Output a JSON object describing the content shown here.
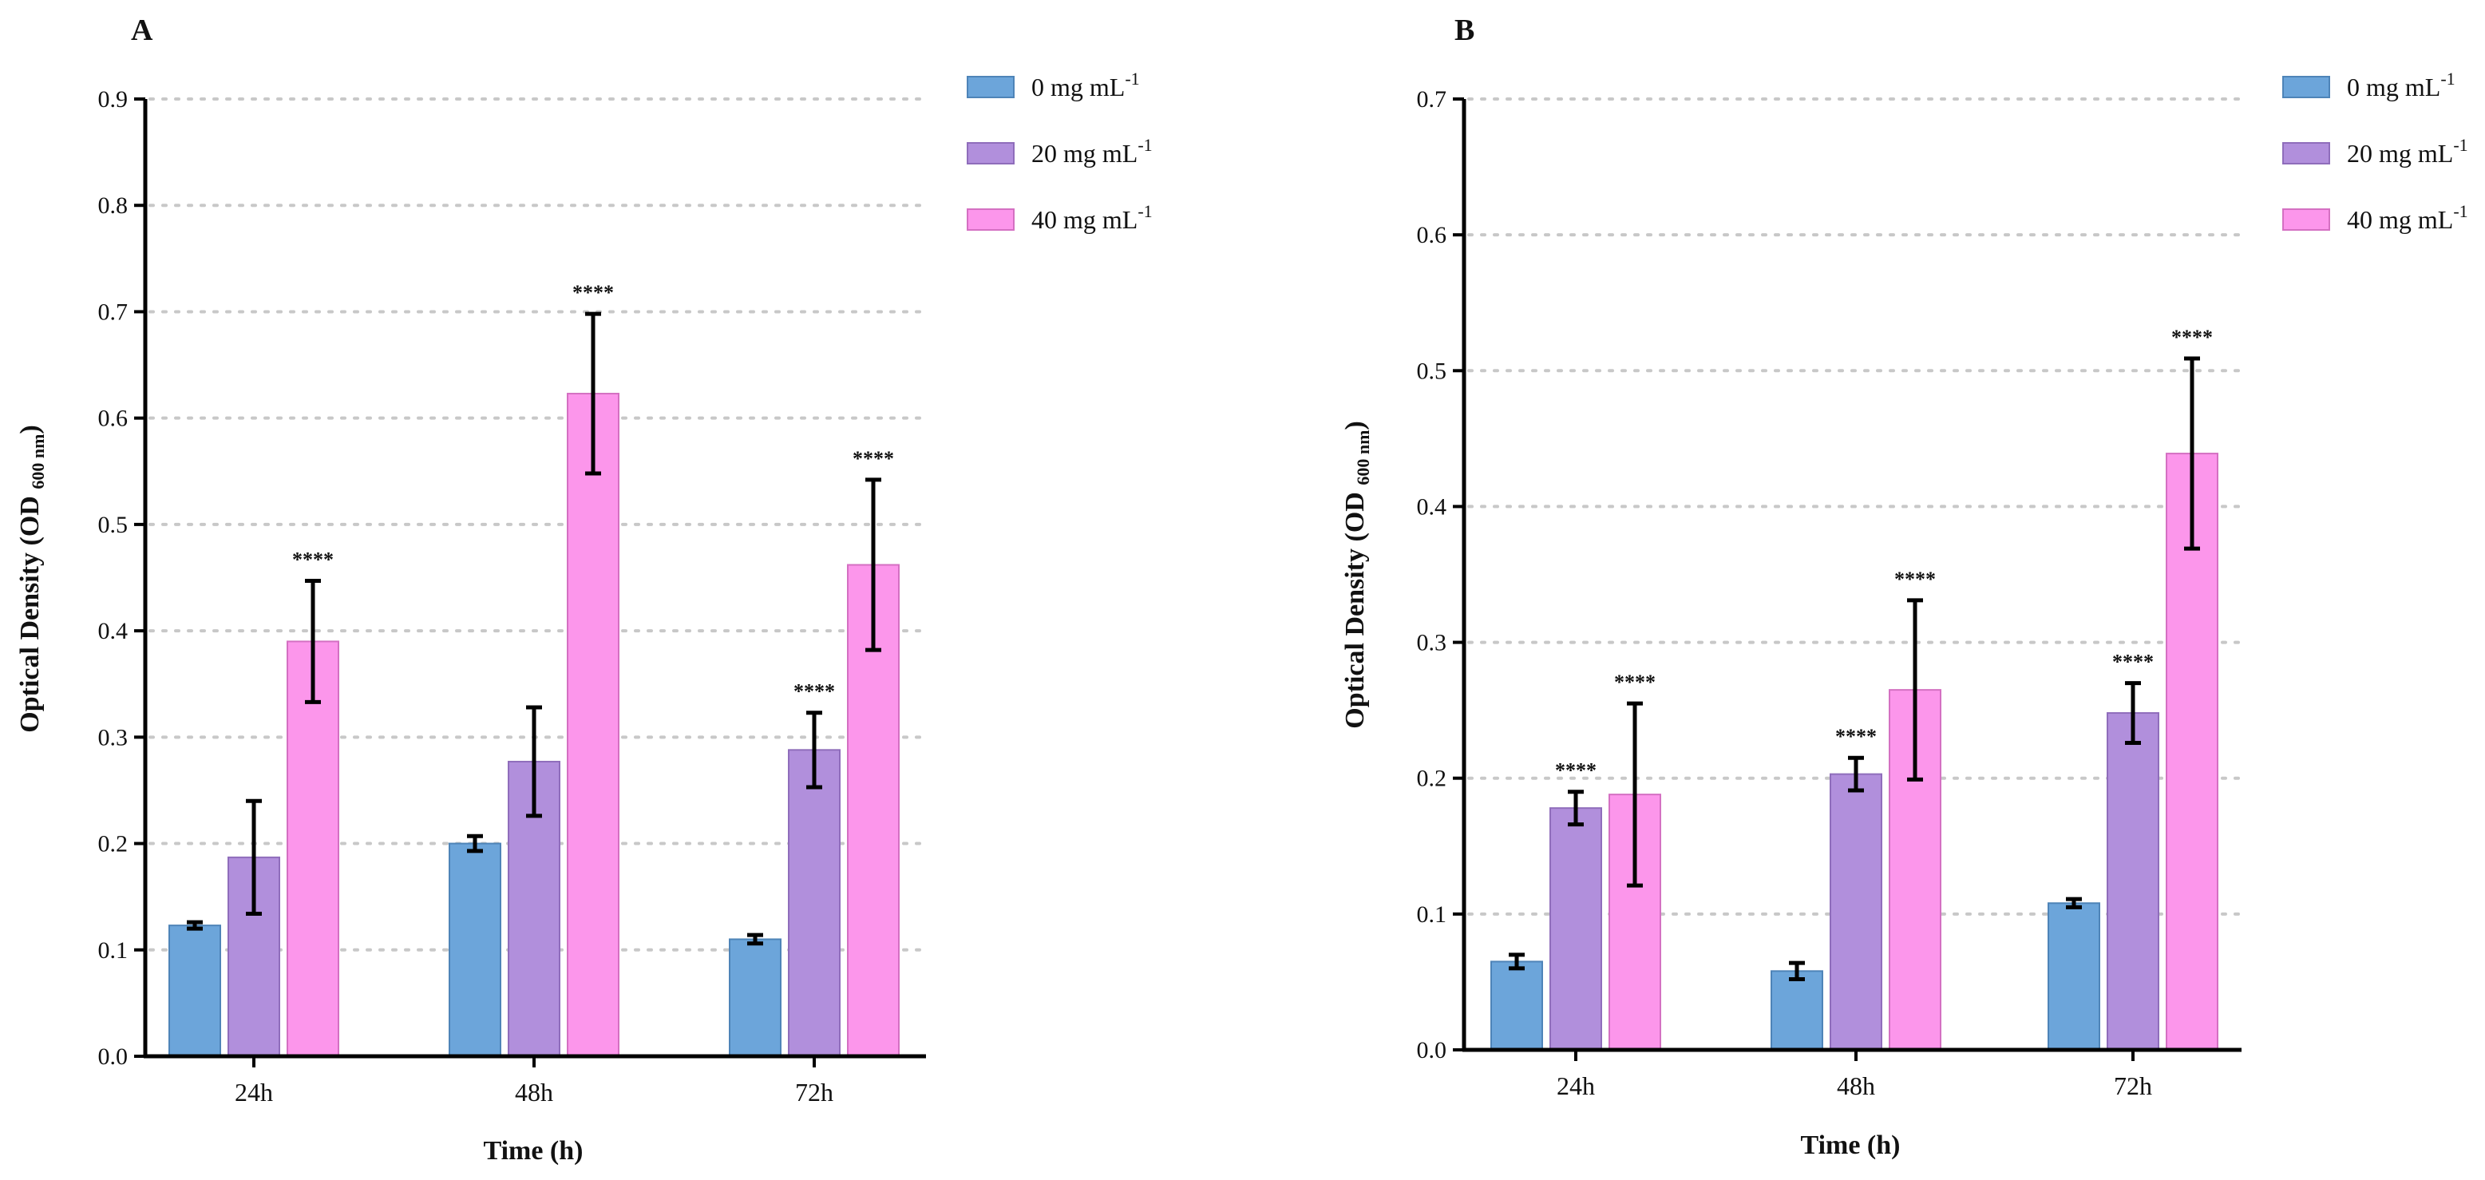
{
  "colors": {
    "s0": "#6CA5DA",
    "s1": "#B18FDC",
    "s2": "#FC96EB",
    "stroke0": "#4E84B8",
    "stroke1": "#8F6DBB",
    "stroke2": "#D470C2"
  },
  "chart_data": [
    {
      "type": "bar",
      "panel_label": "A",
      "xlabel": "Time (h)",
      "ylabel": {
        "main": "Optical Density (OD ",
        "sub": "600 nm",
        "close": ")"
      },
      "ylim": [
        0,
        0.9
      ],
      "yticks": [
        "0.0",
        "0.1",
        "0.2",
        "0.3",
        "0.4",
        "0.5",
        "0.6",
        "0.7",
        "0.8",
        "0.9"
      ],
      "grid": true,
      "legend_position": "top-right",
      "categories": [
        "24h",
        "48h",
        "72h"
      ],
      "series": [
        {
          "name": "0 mg mL",
          "sup": "-1",
          "values": [
            0.123,
            0.2,
            0.11
          ],
          "errors": [
            0.003,
            0.007,
            0.004
          ],
          "sig": [
            "",
            "",
            ""
          ]
        },
        {
          "name": "20 mg mL",
          "sup": "-1",
          "values": [
            0.187,
            0.277,
            0.288
          ],
          "errors": [
            0.053,
            0.051,
            0.035
          ],
          "sig": [
            "",
            "",
            "****"
          ]
        },
        {
          "name": "40 mg mL",
          "sup": "-1",
          "values": [
            0.39,
            0.623,
            0.462
          ],
          "errors": [
            0.057,
            0.075,
            0.08
          ],
          "sig": [
            "****",
            "****",
            "****"
          ]
        }
      ]
    },
    {
      "type": "bar",
      "panel_label": "B",
      "xlabel": "Time (h)",
      "ylabel": {
        "main": "Optical Density (OD ",
        "sub": "600 nm",
        "close": ")"
      },
      "ylim": [
        0,
        0.7
      ],
      "yticks": [
        "0.0",
        "0.1",
        "0.2",
        "0.3",
        "0.4",
        "0.5",
        "0.6",
        "0.7"
      ],
      "grid": true,
      "legend_position": "top-right",
      "categories": [
        "24h",
        "48h",
        "72h"
      ],
      "series": [
        {
          "name": "0 mg mL",
          "sup": "-1",
          "values": [
            0.065,
            0.058,
            0.108
          ],
          "errors": [
            0.005,
            0.006,
            0.003
          ],
          "sig": [
            "",
            "",
            ""
          ]
        },
        {
          "name": "20 mg mL",
          "sup": "-1",
          "values": [
            0.178,
            0.203,
            0.248
          ],
          "errors": [
            0.012,
            0.012,
            0.022
          ],
          "sig": [
            "****",
            "****",
            "****"
          ]
        },
        {
          "name": "40 mg mL",
          "sup": "-1",
          "values": [
            0.188,
            0.265,
            0.439
          ],
          "errors": [
            0.067,
            0.066,
            0.07
          ],
          "sig": [
            "****",
            "****",
            "****"
          ]
        }
      ]
    }
  ]
}
